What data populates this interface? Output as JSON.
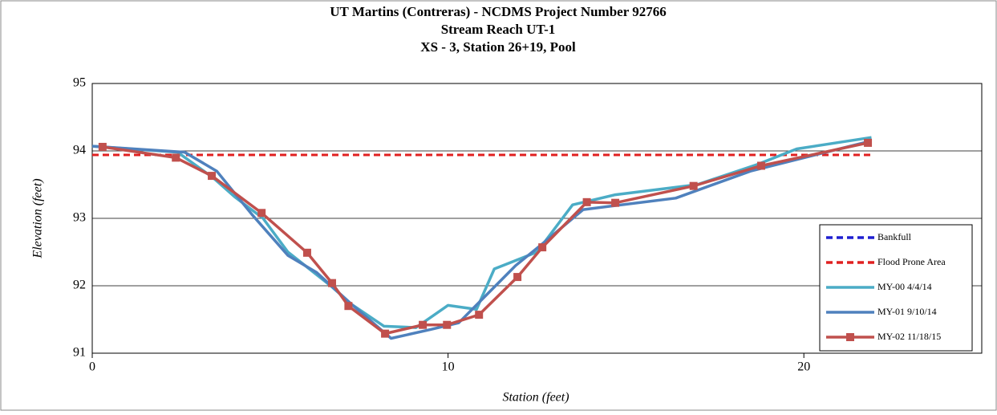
{
  "chart_data": {
    "type": "line",
    "title": [
      "UT Martins (Contreras) - NCDMS Project Number 92766",
      "Stream Reach UT-1",
      "XS - 3, Station 26+19, Pool"
    ],
    "xlabel": "Station (feet)",
    "ylabel": "Elevation (feet)",
    "xlim": [
      0,
      25
    ],
    "xticks": [
      0,
      10,
      20
    ],
    "ylim": [
      91,
      95
    ],
    "yticks": [
      91,
      92,
      93,
      94,
      95
    ],
    "grid": true,
    "legend": "lower right",
    "series": [
      {
        "name": "Bankfull",
        "color": "#1f1fd0",
        "dash": true,
        "x": [
          0,
          21.9
        ],
        "values": [
          93.94,
          93.94
        ]
      },
      {
        "name": "Flood Prone Area",
        "color": "#e02020",
        "dash": true,
        "x": [
          0,
          21.9
        ],
        "values": [
          93.94,
          93.94
        ]
      },
      {
        "name": "MY-00 4/4/14",
        "color": "#4bacc6",
        "x": [
          0,
          2.4,
          3.4,
          4,
          4.8,
          5.5,
          6.7,
          7.3,
          8.2,
          9.1,
          10,
          10.8,
          11.3,
          12.5,
          13.5,
          14.7,
          17,
          18.7,
          19.8,
          21.9
        ],
        "values": [
          94.07,
          93.98,
          93.6,
          93.32,
          93.0,
          92.5,
          92.0,
          91.72,
          91.4,
          91.38,
          91.71,
          91.65,
          92.25,
          92.5,
          93.2,
          93.35,
          93.5,
          93.8,
          94.03,
          94.2
        ]
      },
      {
        "name": "MY-01 9/10/14",
        "color": "#4f81bd",
        "x": [
          0,
          2.6,
          3.5,
          4.5,
          5.5,
          6.3,
          7.3,
          8.4,
          9.5,
          10.3,
          11.9,
          12.6,
          13.8,
          16.4,
          18.5,
          21.9
        ],
        "values": [
          94.07,
          93.98,
          93.7,
          93.05,
          92.45,
          92.2,
          91.72,
          91.22,
          91.35,
          91.45,
          92.3,
          92.6,
          93.13,
          93.3,
          93.7,
          94.15
        ]
      },
      {
        "name": "MY-02 11/18/15",
        "color": "#c0504d",
        "markers": true,
        "x": [
          0.29,
          2.35,
          3.36,
          4.76,
          6.04,
          6.74,
          7.2,
          8.23,
          9.29,
          9.97,
          10.87,
          11.95,
          12.65,
          13.9,
          14.7,
          16.9,
          18.8,
          21.8
        ],
        "values": [
          94.06,
          93.9,
          93.63,
          93.08,
          92.49,
          92.04,
          91.7,
          91.29,
          91.42,
          91.42,
          91.57,
          92.13,
          92.57,
          93.24,
          93.23,
          93.48,
          93.78,
          94.12
        ]
      }
    ]
  }
}
